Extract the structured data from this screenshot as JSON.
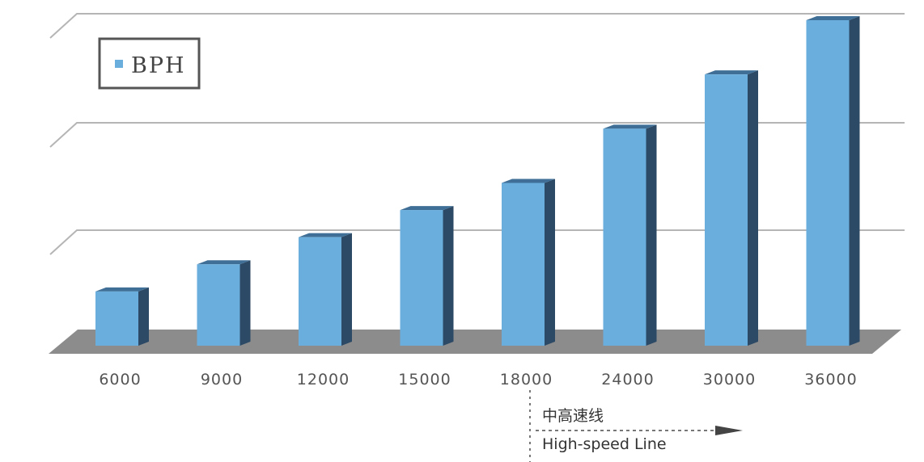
{
  "chart_data": {
    "type": "bar",
    "title": "",
    "xlabel": "",
    "ylabel": "",
    "categories": [
      "6000",
      "9000",
      "12000",
      "15000",
      "18000",
      "24000",
      "30000",
      "36000"
    ],
    "series": [
      {
        "name": "BPH",
        "values": [
          6000,
          9000,
          12000,
          15000,
          18000,
          24000,
          30000,
          36000
        ]
      }
    ],
    "ylim": [
      0,
      36000
    ],
    "grid": true,
    "legend": "top-left",
    "style": "3d",
    "colors": {
      "bar_front": "#6aaede",
      "bar_side": "#2c4a66",
      "bar_top": "#3f6f96",
      "floor": "#8c8c8c",
      "grid": "#b5b5b5"
    }
  },
  "annotation": {
    "label_cn": "中高速线",
    "label_en": "High-speed Line"
  }
}
